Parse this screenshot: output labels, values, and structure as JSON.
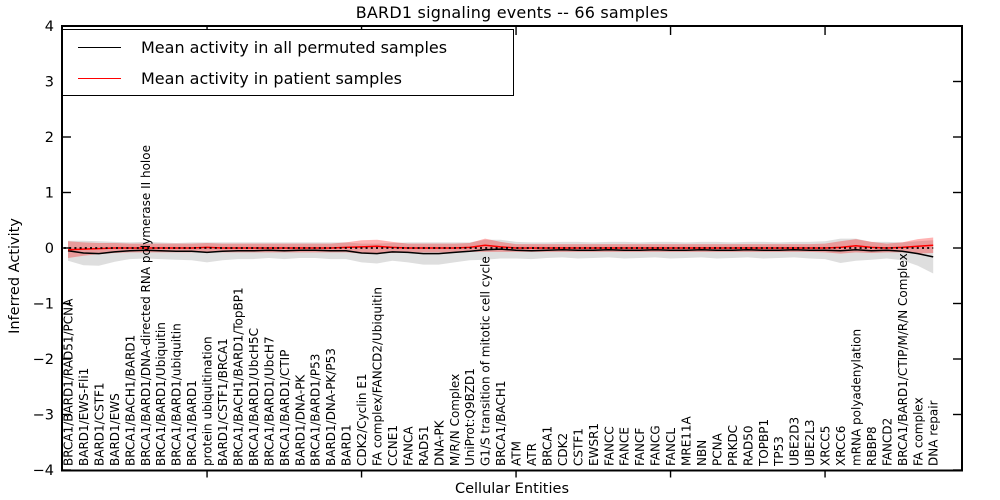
{
  "chart_data": {
    "type": "line",
    "title": "BARD1 signaling events -- 66 samples",
    "xlabel": "Cellular Entities",
    "ylabel": "Inferred Activity",
    "ylim": [
      -4,
      4
    ],
    "grid": false,
    "legend_position": "upper left",
    "ytick_values": [
      -4,
      -3,
      -2,
      -1,
      0,
      1,
      2,
      3,
      4
    ],
    "ytick_labels": [
      "−4",
      "−3",
      "−2",
      "−1",
      "0",
      "1",
      "2",
      "3",
      "4"
    ],
    "xtick_indices": [
      9,
      19,
      29,
      39,
      49
    ],
    "categories": [
      "BRCA1/BARD1/RAD51/PCNA",
      "BARD1/EWS-Fli1",
      "BARD1/CSTF1",
      "BARD1/EWS",
      "BRCA1/BACH1/BARD1",
      "BRCA1/BARD1/DNA-directed RNA polymerase II holoe",
      "BRCA1/BARD1/Ubiquitin",
      "BRCA1/BARD1/ubiquitin",
      "BRCA1/BARD1",
      "protein ubiquitination",
      "BARD1/CSTF1/BRCA1",
      "BRCA1/BACH1/BARD1/TopBP1",
      "BRCA1/BARD1/UbcH5C",
      "BRCA1/BARD1/UbcH7",
      "BRCA1/BARD1/CTIP",
      "BARD1/DNA-PK",
      "BRCA1/BARD1/P53",
      "BARD1/DNA-PK/P53",
      "BARD1",
      "CDK2/Cyclin E1",
      "FA complex/FANCD2/Ubiquitin",
      "CCNE1",
      "FANCA",
      "RAD51",
      "DNA-PK",
      "M/R/N Complex",
      "UniProt:Q9BZD1",
      "G1/S transition of mitotic cell cycle",
      "BRCA1/BACH1",
      "ATM",
      "ATR",
      "BRCA1",
      "CDK2",
      "CSTF1",
      "EWSR1",
      "FANCC",
      "FANCE",
      "FANCF",
      "FANCG",
      "FANCL",
      "MRE11A",
      "NBN",
      "PCNA",
      "PRKDC",
      "RAD50",
      "TOPBP1",
      "TP53",
      "UBE2D3",
      "UBE2L3",
      "XRCC5",
      "XRCC6",
      "mRNA polyadenylation",
      "RBBP8",
      "FANCD2",
      "BRCA1/BARD1/CTIP/M/R/N Complex",
      "FA complex",
      "DNA repair"
    ],
    "series": [
      {
        "name": "Mean activity in all permuted samples",
        "color": "#000000",
        "band_color": "rgba(0,0,0,0.13)",
        "values": [
          -0.05,
          -0.09,
          -0.1,
          -0.07,
          -0.05,
          -0.04,
          -0.05,
          -0.06,
          -0.06,
          -0.08,
          -0.06,
          -0.05,
          -0.05,
          -0.04,
          -0.05,
          -0.04,
          -0.04,
          -0.05,
          -0.05,
          -0.09,
          -0.1,
          -0.07,
          -0.08,
          -0.1,
          -0.1,
          -0.08,
          -0.06,
          -0.03,
          -0.02,
          -0.04,
          -0.05,
          -0.04,
          -0.03,
          -0.04,
          -0.04,
          -0.03,
          -0.04,
          -0.04,
          -0.03,
          -0.04,
          -0.04,
          -0.03,
          -0.04,
          -0.04,
          -0.03,
          -0.04,
          -0.04,
          -0.03,
          -0.04,
          -0.04,
          -0.05,
          -0.03,
          -0.05,
          -0.04,
          -0.06,
          -0.1,
          -0.16
        ],
        "band": [
          0.18,
          0.22,
          0.22,
          0.18,
          0.15,
          0.15,
          0.15,
          0.15,
          0.16,
          0.18,
          0.16,
          0.15,
          0.15,
          0.14,
          0.15,
          0.14,
          0.14,
          0.15,
          0.15,
          0.17,
          0.18,
          0.16,
          0.18,
          0.2,
          0.2,
          0.18,
          0.16,
          0.18,
          0.17,
          0.15,
          0.15,
          0.14,
          0.14,
          0.15,
          0.14,
          0.14,
          0.15,
          0.14,
          0.14,
          0.15,
          0.14,
          0.14,
          0.15,
          0.14,
          0.14,
          0.15,
          0.14,
          0.14,
          0.15,
          0.16,
          0.22,
          0.2,
          0.16,
          0.15,
          0.16,
          0.22,
          0.3
        ]
      },
      {
        "name": "Mean activity in patient samples",
        "color": "#ff0000",
        "band_color": "rgba(255,0,0,0.30)",
        "values": [
          -0.03,
          -0.02,
          -0.01,
          0.0,
          0.0,
          0.0,
          0.0,
          0.0,
          0.0,
          0.01,
          0.0,
          0.0,
          0.0,
          0.0,
          0.0,
          0.0,
          0.0,
          0.0,
          0.01,
          0.02,
          0.03,
          0.01,
          0.0,
          0.0,
          0.0,
          0.0,
          0.01,
          0.05,
          0.02,
          0.0,
          0.0,
          0.0,
          0.0,
          0.0,
          0.0,
          0.0,
          0.0,
          0.0,
          0.0,
          0.0,
          0.0,
          0.0,
          0.0,
          0.0,
          0.0,
          0.0,
          0.0,
          0.0,
          0.0,
          0.0,
          0.01,
          0.04,
          0.01,
          0.0,
          0.01,
          0.03,
          0.05
        ],
        "band": [
          0.15,
          0.12,
          0.1,
          0.09,
          0.08,
          0.08,
          0.08,
          0.08,
          0.08,
          0.08,
          0.08,
          0.08,
          0.08,
          0.08,
          0.08,
          0.08,
          0.08,
          0.08,
          0.09,
          0.12,
          0.12,
          0.1,
          0.08,
          0.08,
          0.08,
          0.08,
          0.08,
          0.12,
          0.09,
          0.07,
          0.07,
          0.07,
          0.07,
          0.07,
          0.07,
          0.07,
          0.07,
          0.07,
          0.07,
          0.07,
          0.07,
          0.07,
          0.07,
          0.07,
          0.07,
          0.07,
          0.07,
          0.07,
          0.07,
          0.08,
          0.11,
          0.12,
          0.1,
          0.08,
          0.09,
          0.13,
          0.14
        ]
      }
    ],
    "zero_line": {
      "value": 0,
      "color": "#000000",
      "style": "dotted"
    }
  }
}
